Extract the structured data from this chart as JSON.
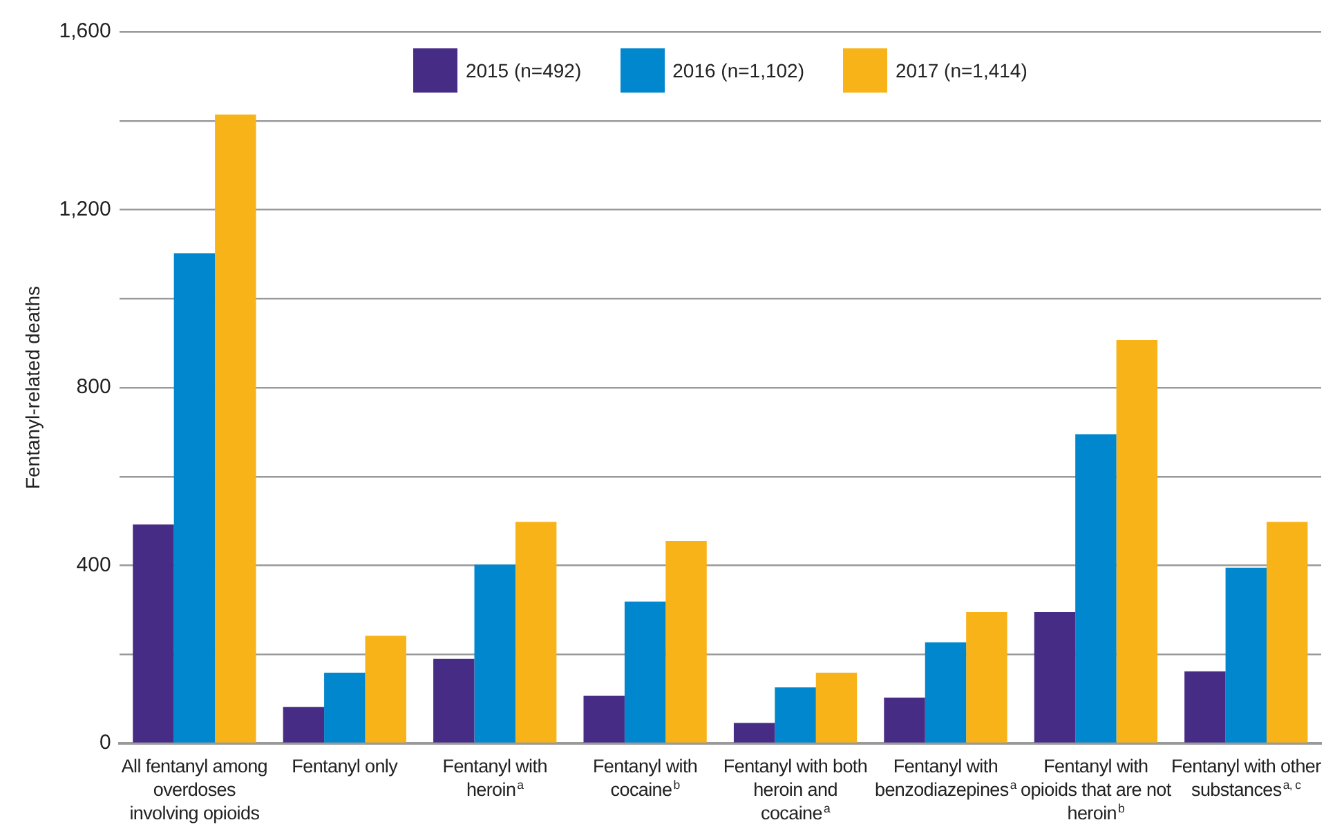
{
  "chart_data": {
    "type": "bar",
    "ylabel": "Fentanyl-related deaths",
    "categories": [
      "All fentanyl among overdoses involving opioids",
      "Fentanyl only",
      "Fentanyl with heroin$^{a}$",
      "Fentanyl with cocaine$^{b}$",
      "Fentanyl with both heroin and cocaine$^{a}$",
      "Fentanyl with benzodiazepines$^{a}$",
      "Fentanyl with opioids that are not heroin$^{b}$",
      "Fentanyl with other substances$^{a, c}$"
    ],
    "series": [
      {
        "name": "2015 (n=492)",
        "color": "#472c86",
        "values": [
          492,
          82,
          190,
          107,
          46,
          103,
          295,
          162
        ]
      },
      {
        "name": "2016 (n=1,102)",
        "color": "#0087cd",
        "values": [
          1102,
          159,
          402,
          319,
          126,
          227,
          695,
          395
        ]
      },
      {
        "name": "2017 (n=1,414)",
        "color": "#f8b318",
        "values": [
          1414,
          242,
          498,
          455,
          159,
          295,
          907,
          498
        ]
      }
    ],
    "ylim": [
      0,
      1600
    ],
    "yticks": [
      0,
      {
        "value": 200,
        "label": null
      },
      400,
      {
        "value": 600,
        "label": null
      },
      800,
      {
        "value": 1000,
        "label": null
      },
      "1,200",
      {
        "value": 1400,
        "label": null
      },
      "1,600"
    ],
    "grid": "y",
    "legend": "top"
  }
}
